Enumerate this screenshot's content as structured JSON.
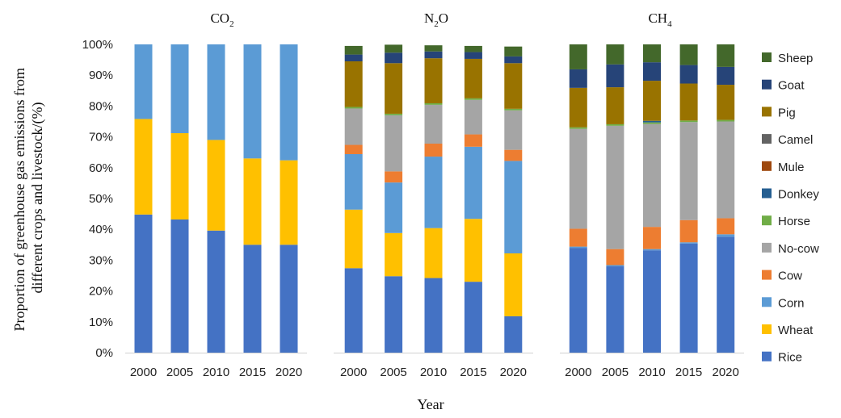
{
  "chart_data": {
    "type": "bar",
    "stacked": true,
    "ylabel": "Proportion of greenhouse gas emissions from different crops and livestock/(%)",
    "xlabel": "Year",
    "ylim": [
      0,
      100
    ],
    "yticks": [
      "0%",
      "10%",
      "20%",
      "30%",
      "40%",
      "50%",
      "60%",
      "70%",
      "80%",
      "90%",
      "100%"
    ],
    "categories": [
      "2000",
      "2005",
      "2010",
      "2015",
      "2020"
    ],
    "legend_position": "right",
    "series_names": [
      "Rice",
      "Wheat",
      "Corn",
      "Cow",
      "No-cow",
      "Horse",
      "Donkey",
      "Mule",
      "Camel",
      "Pig",
      "Goat",
      "Sheep"
    ],
    "colors": {
      "Rice": "#4472c4",
      "Wheat": "#ffc000",
      "Corn": "#5b9bd5",
      "Cow": "#ed7d31",
      "No-cow": "#a5a5a5",
      "Horse": "#70ad47",
      "Donkey": "#255e91",
      "Mule": "#9e480e",
      "Camel": "#636363",
      "Pig": "#997300",
      "Goat": "#264478",
      "Sheep": "#43682b"
    },
    "panels": [
      {
        "title_main": "CO",
        "title_sub": "2",
        "series": [
          {
            "name": "Rice",
            "values": [
              44.8,
              43.2,
              39.6,
              35.0,
              35.0
            ]
          },
          {
            "name": "Wheat",
            "values": [
              31.0,
              28.0,
              29.4,
              28.0,
              27.4
            ]
          },
          {
            "name": "Corn",
            "values": [
              24.2,
              28.8,
              31.0,
              37.0,
              37.6
            ]
          }
        ]
      },
      {
        "title_main": "N",
        "title_sub": "2",
        "title_tail": "O",
        "series": [
          {
            "name": "Rice",
            "values": [
              27.4,
              24.8,
              24.2,
              23.0,
              11.8
            ]
          },
          {
            "name": "Wheat",
            "values": [
              19.0,
              14.0,
              16.2,
              20.4,
              20.4
            ]
          },
          {
            "name": "Corn",
            "values": [
              18.0,
              16.4,
              23.2,
              23.4,
              30.0
            ]
          },
          {
            "name": "Cow",
            "values": [
              3.0,
              3.6,
              4.2,
              4.0,
              3.6
            ]
          },
          {
            "name": "No-cow",
            "values": [
              11.8,
              18.2,
              12.6,
              11.2,
              12.8
            ]
          },
          {
            "name": "Horse",
            "values": [
              0.5,
              0.5,
              0.5,
              0.5,
              0.5
            ]
          },
          {
            "name": "Donkey",
            "values": [
              0.0,
              0.0,
              0.0,
              0.0,
              0.0
            ]
          },
          {
            "name": "Mule",
            "values": [
              0.0,
              0.0,
              0.0,
              0.0,
              0.0
            ]
          },
          {
            "name": "Camel",
            "values": [
              0.0,
              0.0,
              0.0,
              0.0,
              0.0
            ]
          },
          {
            "name": "Pig",
            "values": [
              14.8,
              16.4,
              14.6,
              12.8,
              14.8
            ]
          },
          {
            "name": "Goat",
            "values": [
              2.2,
              3.4,
              2.2,
              2.2,
              2.2
            ]
          },
          {
            "name": "Sheep",
            "values": [
              2.8,
              2.6,
              2.0,
              2.0,
              3.2
            ]
          }
        ]
      },
      {
        "title_main": "CH",
        "title_sub": "4",
        "series": [
          {
            "name": "Rice",
            "values": [
              34.0,
              28.0,
              33.2,
              35.4,
              37.6
            ]
          },
          {
            "name": "Wheat",
            "values": [
              0.0,
              0.0,
              0.0,
              0.0,
              0.0
            ]
          },
          {
            "name": "Corn",
            "values": [
              0.4,
              0.4,
              0.4,
              0.4,
              0.8
            ]
          },
          {
            "name": "Cow",
            "values": [
              5.8,
              5.2,
              7.2,
              7.2,
              5.2
            ]
          },
          {
            "name": "No-cow",
            "values": [
              32.4,
              40.0,
              33.4,
              31.8,
              31.4
            ]
          },
          {
            "name": "Horse",
            "values": [
              0.5,
              0.5,
              0.5,
              0.5,
              0.5
            ]
          },
          {
            "name": "Donkey",
            "values": [
              0.0,
              0.0,
              0.5,
              0.0,
              0.0
            ]
          },
          {
            "name": "Mule",
            "values": [
              0.0,
              0.0,
              0.0,
              0.0,
              0.0
            ]
          },
          {
            "name": "Camel",
            "values": [
              0.0,
              0.0,
              0.0,
              0.0,
              0.0
            ]
          },
          {
            "name": "Pig",
            "values": [
              12.8,
              12.0,
              13.0,
              12.0,
              11.4
            ]
          },
          {
            "name": "Goat",
            "values": [
              6.0,
              7.4,
              6.0,
              6.0,
              5.8
            ]
          },
          {
            "name": "Sheep",
            "values": [
              8.1,
              6.5,
              5.8,
              6.7,
              7.3
            ]
          }
        ]
      }
    ]
  }
}
